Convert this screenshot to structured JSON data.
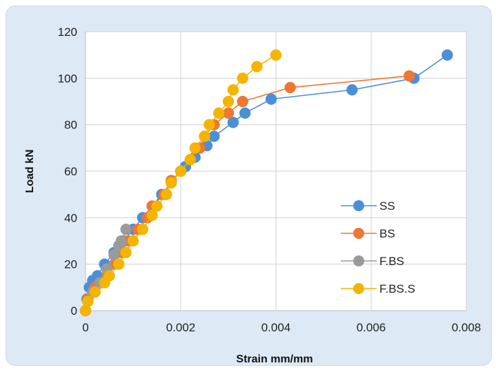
{
  "chart_data": {
    "type": "scatter",
    "title": "",
    "xlabel": "Strain mm/mm",
    "ylabel": "Load kN",
    "xlim": [
      0,
      0.008
    ],
    "ylim": [
      0,
      120
    ],
    "xticks": [
      "0",
      "0.002",
      "0.004",
      "0.006",
      "0.008"
    ],
    "yticks": [
      "0",
      "20",
      "40",
      "60",
      "80",
      "100",
      "120"
    ],
    "grid": true,
    "legend_position": "right",
    "series": [
      {
        "name": "SS",
        "color": "#4a90d9",
        "points": [
          [
            0,
            0
          ],
          [
            3e-05,
            5
          ],
          [
            8e-05,
            10
          ],
          [
            0.00015,
            13
          ],
          [
            0.00025,
            15
          ],
          [
            0.0004,
            20
          ],
          [
            0.0006,
            25
          ],
          [
            0.0008,
            30
          ],
          [
            0.001,
            35
          ],
          [
            0.0012,
            40
          ],
          [
            0.0014,
            45
          ],
          [
            0.0016,
            50
          ],
          [
            0.0018,
            55
          ],
          [
            0.002,
            60
          ],
          [
            0.0021,
            62
          ],
          [
            0.0023,
            66
          ],
          [
            0.00255,
            71
          ],
          [
            0.0027,
            75
          ],
          [
            0.0031,
            81
          ],
          [
            0.00335,
            85
          ],
          [
            0.0039,
            91
          ],
          [
            0.0056,
            95
          ],
          [
            0.0069,
            100
          ],
          [
            0.0076,
            110
          ]
        ]
      },
      {
        "name": "BS",
        "color": "#ee7733",
        "points": [
          [
            0,
            0
          ],
          [
            5e-05,
            5
          ],
          [
            0.0002,
            10
          ],
          [
            0.0003,
            12
          ],
          [
            0.00045,
            15
          ],
          [
            0.0006,
            20
          ],
          [
            0.00075,
            25
          ],
          [
            0.0009,
            30
          ],
          [
            0.0011,
            35
          ],
          [
            0.0013,
            40
          ],
          [
            0.0014,
            45
          ],
          [
            0.00165,
            50
          ],
          [
            0.0018,
            56
          ],
          [
            0.002,
            60
          ],
          [
            0.0022,
            65
          ],
          [
            0.0024,
            70
          ],
          [
            0.0025,
            75
          ],
          [
            0.0027,
            80
          ],
          [
            0.003,
            85
          ],
          [
            0.0033,
            90
          ],
          [
            0.0043,
            96
          ],
          [
            0.0068,
            101
          ]
        ]
      },
      {
        "name": "F.BS",
        "color": "#9a9a9a",
        "points": [
          [
            0,
            0
          ],
          [
            5e-05,
            4
          ],
          [
            0.00015,
            8
          ],
          [
            0.0003,
            12
          ],
          [
            0.00045,
            18
          ],
          [
            0.0006,
            24
          ],
          [
            0.0007,
            28
          ],
          [
            0.00075,
            30
          ],
          [
            0.00085,
            35
          ]
        ]
      },
      {
        "name": "F.BS.S",
        "color": "#f5b400",
        "points": [
          [
            0,
            0
          ],
          [
            5e-05,
            4
          ],
          [
            0.0002,
            8
          ],
          [
            0.0004,
            12
          ],
          [
            0.0005,
            15
          ],
          [
            0.0007,
            20
          ],
          [
            0.00085,
            25
          ],
          [
            0.001,
            30
          ],
          [
            0.0012,
            35
          ],
          [
            0.0014,
            41
          ],
          [
            0.0015,
            45
          ],
          [
            0.0017,
            50
          ],
          [
            0.0018,
            55
          ],
          [
            0.002,
            60
          ],
          [
            0.0022,
            65
          ],
          [
            0.0023,
            70
          ],
          [
            0.0025,
            75
          ],
          [
            0.0026,
            80
          ],
          [
            0.0028,
            85
          ],
          [
            0.003,
            90
          ],
          [
            0.0031,
            95
          ],
          [
            0.0033,
            100
          ],
          [
            0.0036,
            105
          ],
          [
            0.004,
            110
          ]
        ]
      }
    ]
  }
}
